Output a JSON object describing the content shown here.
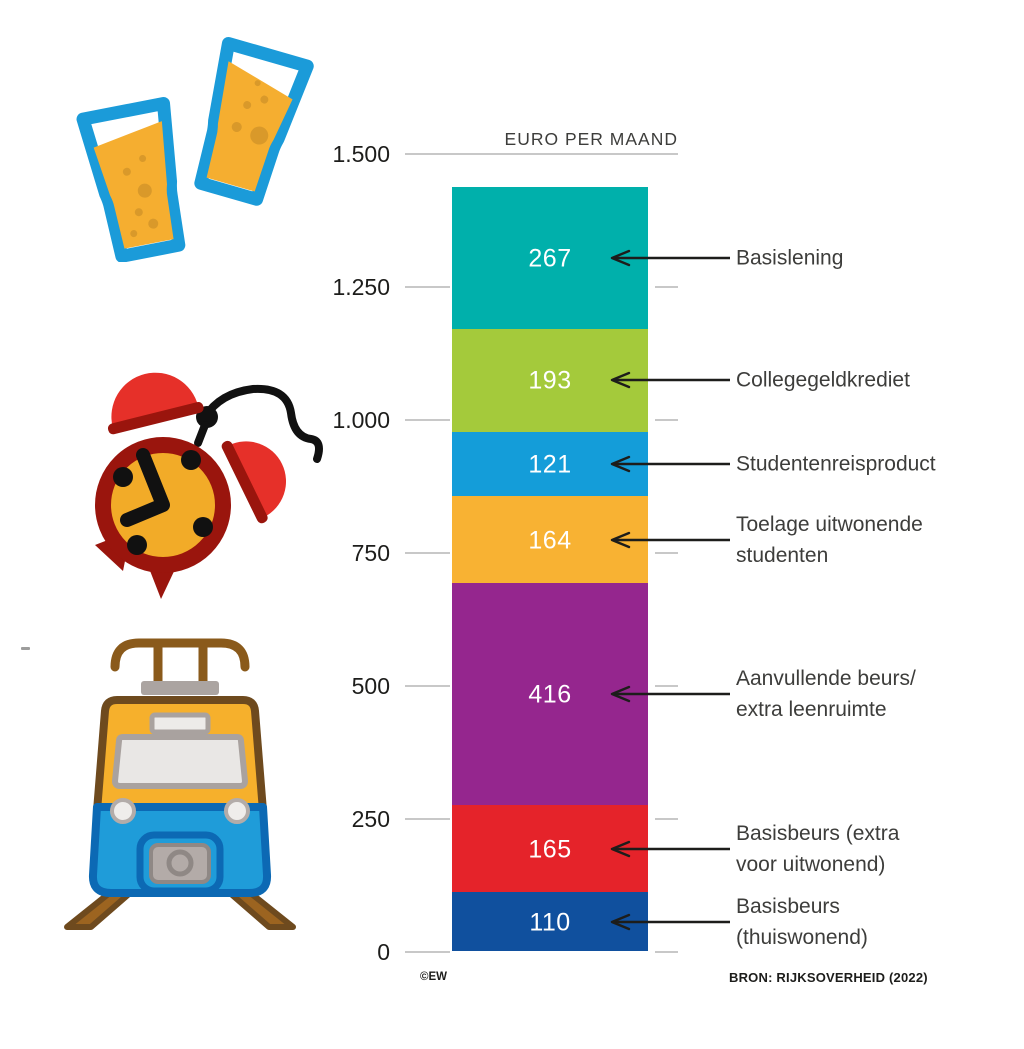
{
  "title": "EURO PER MAAND",
  "footer": {
    "credit": "©EW",
    "source": "BRON: RIJKSOVERHEID (2022)"
  },
  "decor_icons": {
    "beer_glasses": "two clinking beer glasses",
    "alarm_clock": "ringing alarm clock",
    "train": "train front view"
  },
  "chart_data": {
    "type": "bar",
    "stacked": true,
    "title": "EURO PER MAAND",
    "xlabel": "",
    "ylabel": "euro per maand",
    "ylim": [
      0,
      1500
    ],
    "yticks": [
      0,
      250,
      500,
      750,
      1000,
      1250,
      1500
    ],
    "ytick_labels": [
      "0",
      "250",
      "500",
      "750",
      "1.000",
      "1.250",
      "1.500"
    ],
    "grid": "horizontal",
    "total": 1436,
    "segments_top_to_bottom": [
      {
        "label": "Basislening",
        "label_lines": [
          "Basislening"
        ],
        "value": 267,
        "color": "#00b0ab"
      },
      {
        "label": "Collegegeldkrediet",
        "label_lines": [
          "Collegegeldkrediet"
        ],
        "value": 193,
        "color": "#a4ca3b"
      },
      {
        "label": "Studentenreisproduct",
        "label_lines": [
          "Studentenreisproduct"
        ],
        "value": 121,
        "color": "#149dd9"
      },
      {
        "label": "Toelage uitwonende studenten",
        "label_lines": [
          "Toelage uitwonende",
          "studenten"
        ],
        "value": 164,
        "color": "#f8b233"
      },
      {
        "label": "Aanvullende beurs/extra leenruimte",
        "label_lines": [
          "Aanvullende beurs/",
          "extra leenruimte"
        ],
        "value": 416,
        "color": "#95268e"
      },
      {
        "label": "Basisbeurs (extra voor uitwonend)",
        "label_lines": [
          "Basisbeurs (extra",
          "voor uitwonend)"
        ],
        "value": 165,
        "color": "#e5232a"
      },
      {
        "label": "Basisbeurs (thuiswonend)",
        "label_lines": [
          "Basisbeurs",
          "(thuiswonend)"
        ],
        "value": 110,
        "color": "#10509e"
      }
    ],
    "colors": {
      "gridline": "#c8c8c8",
      "arrow": "#1d1d1b",
      "value_text": "#ffffff",
      "label_text": "#3d3d3b"
    }
  }
}
